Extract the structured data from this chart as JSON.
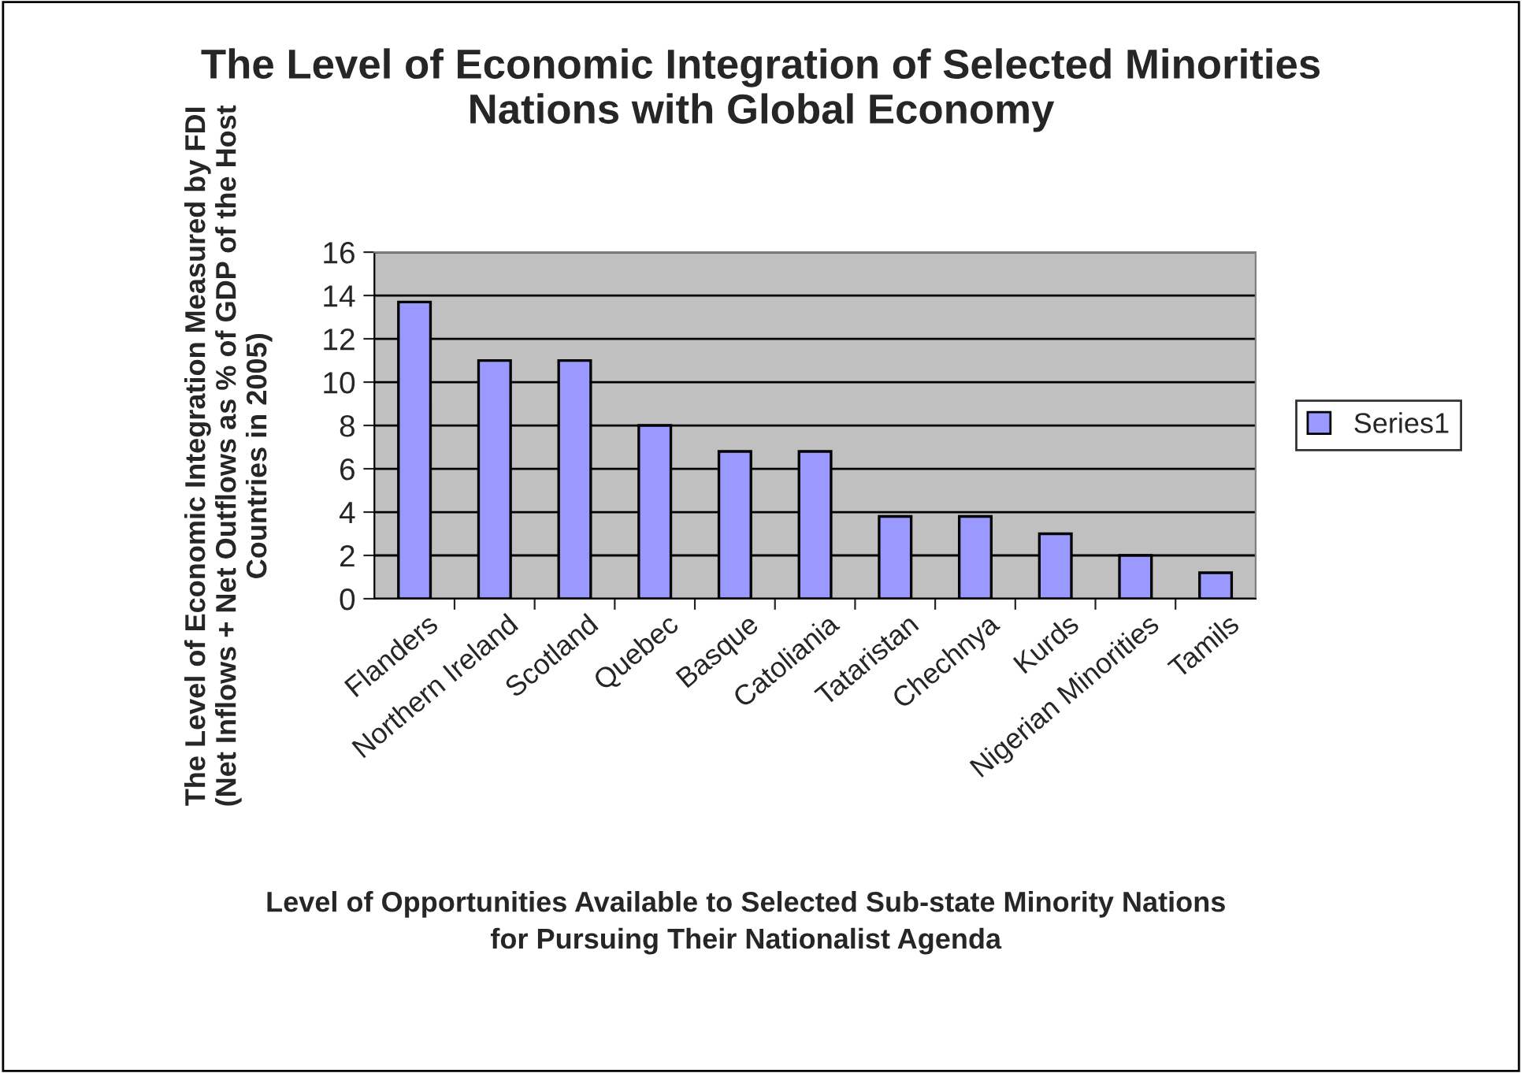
{
  "chart_data": {
    "type": "bar",
    "title": "The Level of Economic Integration of Selected Minorities Nations with Global Economy",
    "xlabel": "Level of Opportunities Available to Selected Sub-state Minority Nations for Pursuing Their Nationalist Agenda",
    "ylabel": "The Level of Economic Integration Measured by FDI (Net Inflows + Net Outflows as % of GDP of the Host Countries in 2005)",
    "categories": [
      "Flanders",
      "Northern Ireland",
      "Scotland",
      "Quebec",
      "Basque",
      "Catoliania",
      "Tataristan",
      "Chechnya",
      "Kurds",
      "Nigerian Minorities",
      "Tamils"
    ],
    "series": [
      {
        "name": "Series1",
        "color": "#9999ff",
        "values": [
          13.7,
          11,
          11,
          8,
          6.8,
          6.8,
          3.8,
          3.8,
          3.0,
          2.0,
          1.2
        ]
      }
    ],
    "ylim": [
      0,
      16
    ],
    "yticks": [
      0,
      2,
      4,
      6,
      8,
      10,
      12,
      14,
      16
    ],
    "grid": "y",
    "legend": "right"
  }
}
